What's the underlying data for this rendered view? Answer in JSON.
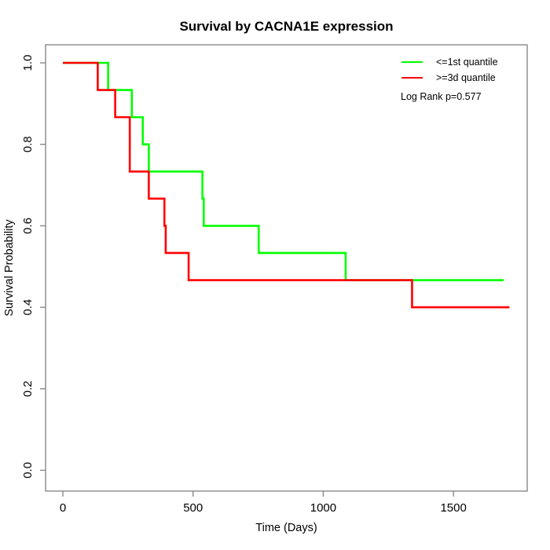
{
  "page": {
    "background": "#ffffff"
  },
  "chart_data": {
    "type": "line",
    "subtype": "kaplan-meier-step",
    "title": "Survival by CACNA1E expression",
    "xlabel": "Time (Days)",
    "ylabel": "Survival Probability",
    "xlim": [
      0,
      1786
    ],
    "ylim": [
      0.0,
      1.0
    ],
    "grid": false,
    "legend_position": "top-right",
    "annotation": "Log Rank p=0.577",
    "axis_color": "#808080",
    "text_color": "#000000",
    "x_ticks": [
      {
        "value": 0,
        "label": "0"
      },
      {
        "value": 500,
        "label": "500"
      },
      {
        "value": 1000,
        "label": "1000"
      },
      {
        "value": 1500,
        "label": "1500"
      }
    ],
    "y_ticks": [
      {
        "value": 0.0,
        "label": "0.0"
      },
      {
        "value": 0.2,
        "label": "0.2"
      },
      {
        "value": 0.4,
        "label": "0.4"
      },
      {
        "value": 0.6,
        "label": "0.6"
      },
      {
        "value": 0.8,
        "label": "0.8"
      },
      {
        "value": 1.0,
        "label": "1.0"
      }
    ],
    "series": [
      {
        "name": "<=1st quantile",
        "color": "#00ff00",
        "steps": [
          [
            0,
            1.0
          ],
          [
            174,
            0.9333
          ],
          [
            265,
            0.8667
          ],
          [
            307,
            0.8
          ],
          [
            330,
            0.7333
          ],
          [
            536,
            0.6667
          ],
          [
            541,
            0.6
          ],
          [
            752,
            0.5333
          ],
          [
            1086,
            0.4667
          ]
        ],
        "end_time": 1693,
        "end_value": 0.4667
      },
      {
        "name": ">=3d quantile",
        "color": "#ff0000",
        "steps": [
          [
            0,
            1.0
          ],
          [
            134,
            0.9333
          ],
          [
            201,
            0.8667
          ],
          [
            257,
            0.7333
          ],
          [
            330,
            0.6667
          ],
          [
            390,
            0.6
          ],
          [
            395,
            0.5333
          ],
          [
            483,
            0.4667
          ],
          [
            1341,
            0.4
          ]
        ],
        "end_time": 1715,
        "end_value": 0.4
      }
    ]
  }
}
